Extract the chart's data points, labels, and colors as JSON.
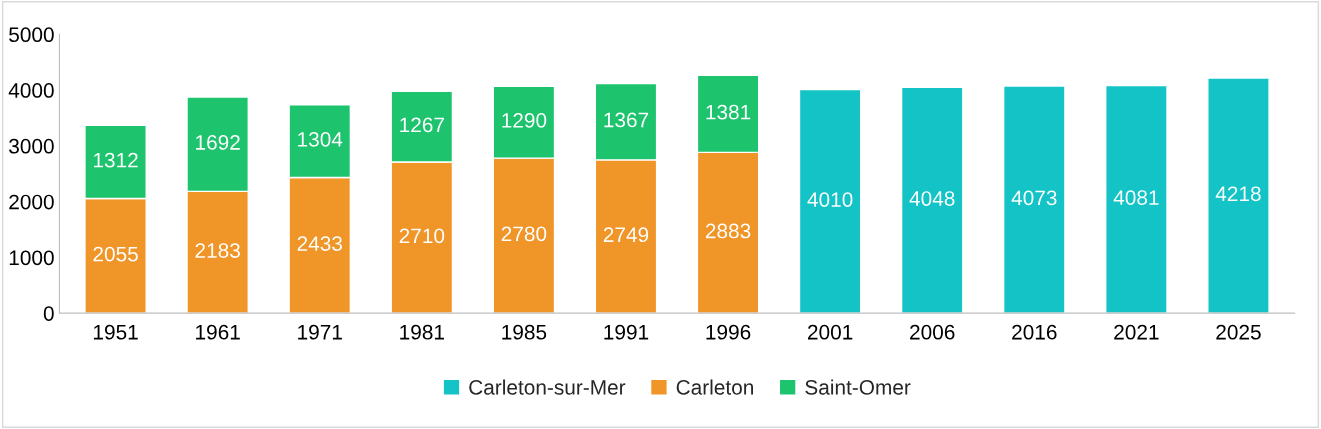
{
  "chart_data": {
    "type": "bar",
    "stacked": true,
    "categories": [
      "1951",
      "1961",
      "1971",
      "1981",
      "1985",
      "1991",
      "1996",
      "2001",
      "2006",
      "2016",
      "2021",
      "2025"
    ],
    "series": [
      {
        "name": "Carleton-sur-Mer",
        "color": "#13c3c6",
        "values": [
          null,
          null,
          null,
          null,
          null,
          null,
          null,
          4010,
          4048,
          4073,
          4081,
          4218
        ]
      },
      {
        "name": "Carleton",
        "color": "#f09528",
        "values": [
          2055,
          2183,
          2433,
          2710,
          2780,
          2749,
          2883,
          null,
          null,
          null,
          null,
          null
        ]
      },
      {
        "name": "Saint-Omer",
        "color": "#1ec36e",
        "values": [
          1312,
          1692,
          1304,
          1267,
          1290,
          1367,
          1381,
          null,
          null,
          null,
          null,
          null
        ]
      }
    ],
    "ylim": [
      0,
      5000
    ],
    "yticks": [
      0,
      1000,
      2000,
      3000,
      4000,
      5000
    ],
    "grid": false,
    "legend": "bottom",
    "data_labels": true
  }
}
